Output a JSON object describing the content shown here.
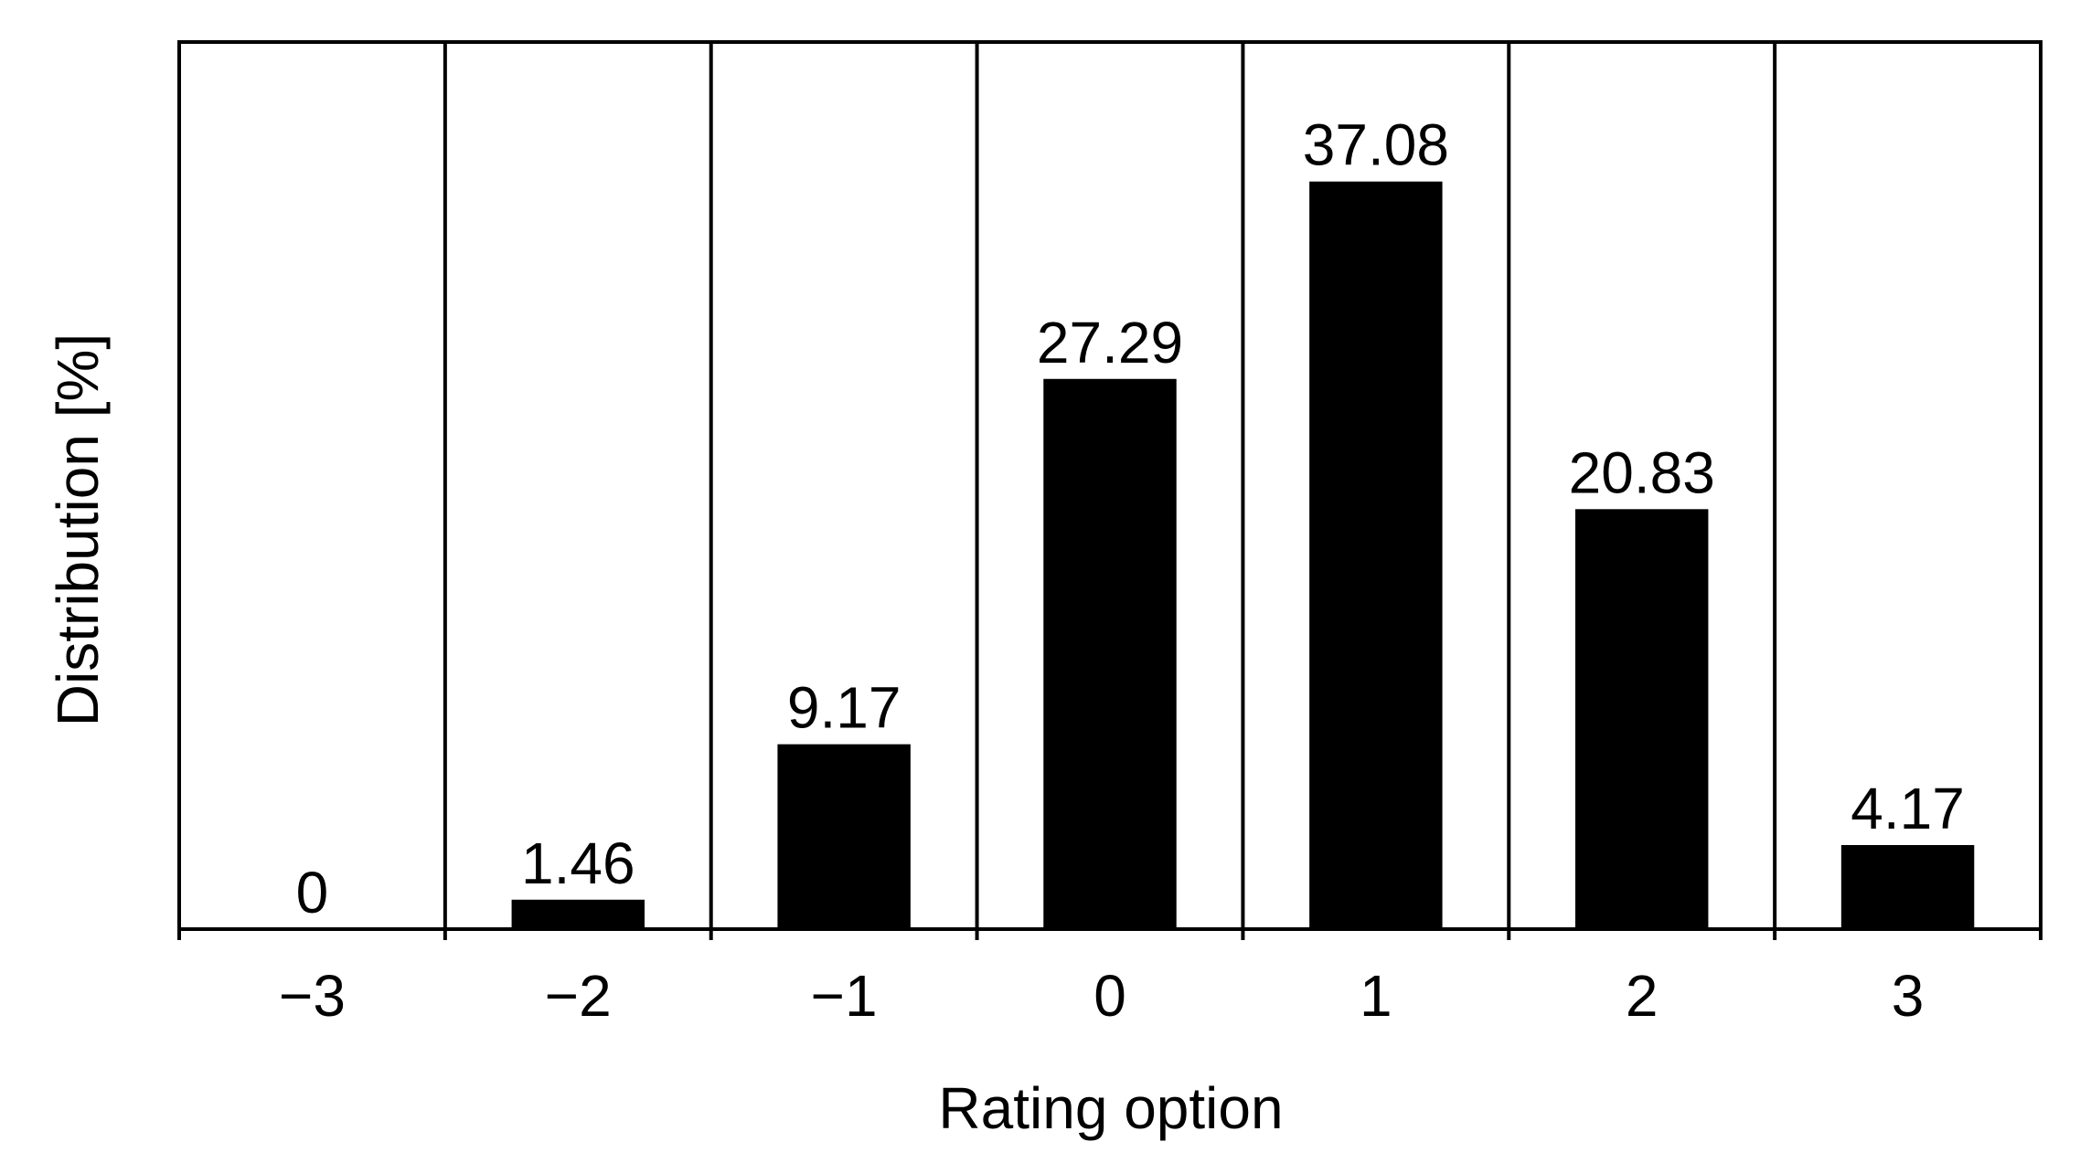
{
  "chart_data": {
    "type": "bar",
    "x_label": "Rating option",
    "y_label": "Distribution [%]",
    "categories": [
      "−3",
      "−2",
      "−1",
      "0",
      "1",
      "2",
      "3"
    ],
    "values": [
      0,
      1.46,
      9.17,
      27.29,
      37.08,
      20.83,
      4.17
    ],
    "color": "#000000",
    "ylim": [
      0,
      44
    ]
  }
}
